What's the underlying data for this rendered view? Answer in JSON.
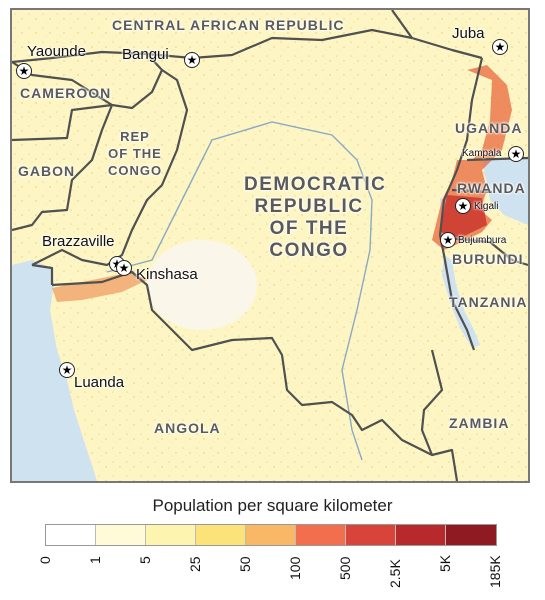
{
  "map": {
    "countries": {
      "car": "CENTRAL AFRICAN REPUBLIC",
      "cameroon": "CAMEROON",
      "gabon": "GABON",
      "rep_congo": [
        "REP",
        "OF THE",
        "CONGO"
      ],
      "drc": [
        "DEMOCRATIC",
        "REPUBLIC",
        "OF THE",
        "CONGO"
      ],
      "uganda": "UGANDA",
      "rwanda": "RWANDA",
      "burundi": "BURUNDI",
      "tanzania": "TANZANIA",
      "angola": "ANGOLA",
      "zambia": "ZAMBIA"
    },
    "cities": {
      "yaounde": "Yaounde",
      "bangui": "Bangui",
      "juba": "Juba",
      "kampala": "Kampala",
      "kigali": "Kigali",
      "bujumbura": "Bujumbura",
      "brazzaville": "Brazzaville",
      "kinshasa": "Kinshasa",
      "luanda": "Luanda"
    },
    "capital_icon": "star-icon",
    "colors": {
      "water": "#cfe2f0",
      "land_base": "#fdf6c4",
      "border": "#505050"
    }
  },
  "legend": {
    "title": "Population per square kilometer",
    "ticks": [
      "0",
      "1",
      "5",
      "25",
      "50",
      "100",
      "500",
      "2.5K",
      "5K",
      "185K"
    ],
    "colors": [
      "#ffffff",
      "#fffbd9",
      "#fdf4b0",
      "#fbe37a",
      "#f9b866",
      "#f26e4c",
      "#d9443a",
      "#b7292c",
      "#8f1a22"
    ]
  }
}
